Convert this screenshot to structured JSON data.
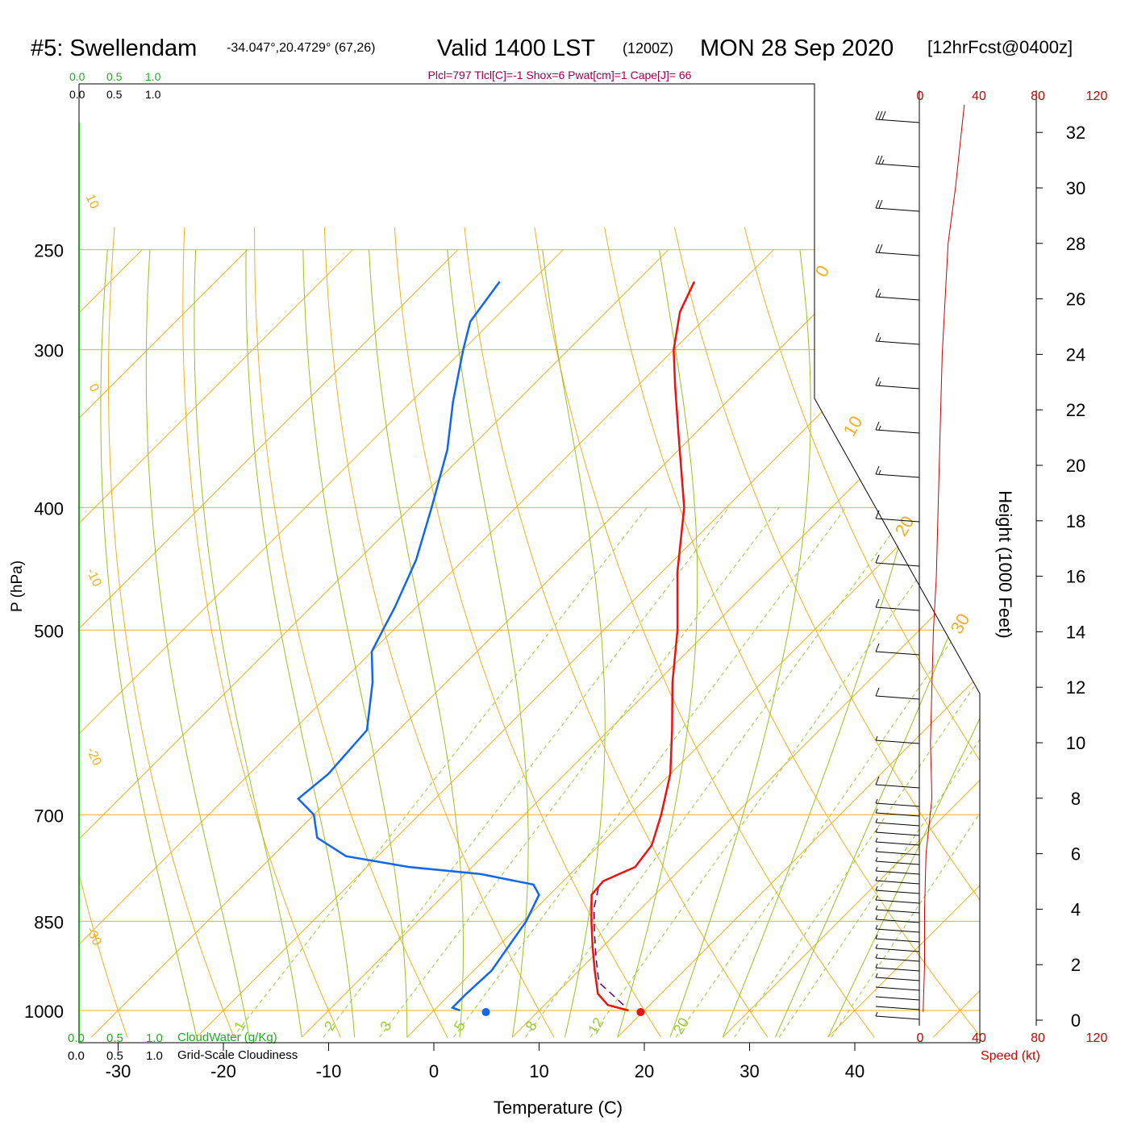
{
  "header": {
    "station": "#5: Swellendam",
    "coords": "-34.047°,20.4729° (67,26)",
    "valid_a": "Valid 1400 LST",
    "valid_z": "(1200Z)",
    "valid_b": "MON 28 Sep 2020",
    "forecast": "[12hrFcst@0400z]",
    "indices": "Plcl=797 Tlcl[C]=-1 Shox=6 Pwat[cm]=1 Cape[J]= 66"
  },
  "axes": {
    "xlabel": "Temperature (C)",
    "ylabel": "P (hPa)",
    "y2label": "Height (1000 Feet)",
    "speed_label": "Speed (kt)"
  },
  "legend": {
    "cloudwater_label": "CloudWater (g/Kg)",
    "cloudiness_label": "Grid-Scale Cloudiness",
    "scale_ticks": [
      "0.0",
      "0.5",
      "1.0"
    ]
  },
  "colors": {
    "temperature": "#ee1111",
    "dewpoint": "#1166ee",
    "parcel": "#660066",
    "isobar": "#f0b020",
    "isotherm": "#f0b020",
    "dry_adiabat": "#99c020",
    "moist_adiabat": "#99c020",
    "mixing_ratio": "#99cc33",
    "indices": "#990055",
    "cloud_axis": "#22aa22",
    "speed": "#cc0000"
  },
  "chart_data": {
    "type": "line",
    "x_ticks": [
      -30,
      -20,
      -10,
      0,
      10,
      20,
      30,
      40
    ],
    "p_ticks": [
      250,
      300,
      400,
      500,
      700,
      850,
      1000
    ],
    "xlim": [
      -30,
      40
    ],
    "ylim": [
      1050,
      250
    ],
    "y_scale": "log",
    "height_ticks": [
      0,
      2,
      4,
      6,
      8,
      10,
      12,
      14,
      16,
      18,
      20,
      22,
      24,
      26,
      28,
      30,
      32
    ],
    "speed_ticks": [
      "0",
      "40",
      "80",
      "120"
    ],
    "isotherm_labels": [
      {
        "label": "10",
        "t": 10
      },
      {
        "label": "0",
        "t": 0
      },
      {
        "label": "-10",
        "t": -10
      },
      {
        "label": "-20",
        "t": -20
      },
      {
        "label": "-30",
        "t": -30
      },
      {
        "label": "0",
        "t": 0
      },
      {
        "label": "10",
        "t": 10
      },
      {
        "label": "20",
        "t": 20
      },
      {
        "label": "30",
        "t": 30
      }
    ],
    "mixing_ratio_labels": [
      "1",
      "2",
      "3",
      "5",
      "8",
      "12",
      "20"
    ],
    "series": [
      {
        "name": "Temperature",
        "points": [
          {
            "p": 1000,
            "t": 18.5
          },
          {
            "p": 990,
            "t": 16.0
          },
          {
            "p": 970,
            "t": 14.0
          },
          {
            "p": 930,
            "t": 11.5
          },
          {
            "p": 890,
            "t": 9.0
          },
          {
            "p": 850,
            "t": 6.5
          },
          {
            "p": 810,
            "t": 4.0
          },
          {
            "p": 790,
            "t": 3.8
          },
          {
            "p": 770,
            "t": 5.5
          },
          {
            "p": 740,
            "t": 5.0
          },
          {
            "p": 700,
            "t": 3.0
          },
          {
            "p": 650,
            "t": 0.0
          },
          {
            "p": 600,
            "t": -4.0
          },
          {
            "p": 550,
            "t": -8.5
          },
          {
            "p": 500,
            "t": -13.0
          },
          {
            "p": 450,
            "t": -18.5
          },
          {
            "p": 400,
            "t": -24.0
          },
          {
            "p": 350,
            "t": -31.5
          },
          {
            "p": 320,
            "t": -36.5
          },
          {
            "p": 300,
            "t": -40.0
          },
          {
            "p": 280,
            "t": -43.0
          },
          {
            "p": 265,
            "t": -44.5
          }
        ]
      },
      {
        "name": "Dewpoint",
        "points": [
          {
            "p": 1000,
            "t": 2.5
          },
          {
            "p": 995,
            "t": 1.5
          },
          {
            "p": 970,
            "t": 1.5
          },
          {
            "p": 930,
            "t": 1.7
          },
          {
            "p": 850,
            "t": 0.3
          },
          {
            "p": 810,
            "t": -1.0
          },
          {
            "p": 795,
            "t": -2.5
          },
          {
            "p": 780,
            "t": -8.5
          },
          {
            "p": 770,
            "t": -16.0
          },
          {
            "p": 755,
            "t": -23.0
          },
          {
            "p": 730,
            "t": -27.5
          },
          {
            "p": 700,
            "t": -30.0
          },
          {
            "p": 680,
            "t": -33.0
          },
          {
            "p": 650,
            "t": -32.5
          },
          {
            "p": 600,
            "t": -33.0
          },
          {
            "p": 550,
            "t": -37.0
          },
          {
            "p": 520,
            "t": -40.0
          },
          {
            "p": 500,
            "t": -41.0
          },
          {
            "p": 480,
            "t": -42.0
          },
          {
            "p": 440,
            "t": -44.5
          },
          {
            "p": 400,
            "t": -48.0
          },
          {
            "p": 360,
            "t": -52.0
          },
          {
            "p": 330,
            "t": -56.0
          },
          {
            "p": 300,
            "t": -60.0
          },
          {
            "p": 285,
            "t": -62.0
          },
          {
            "p": 265,
            "t": -63.0
          }
        ]
      },
      {
        "name": "Parcel",
        "points": [
          {
            "p": 990,
            "t": 17.5
          },
          {
            "p": 950,
            "t": 13.0
          },
          {
            "p": 910,
            "t": 10.5
          },
          {
            "p": 870,
            "t": 8.0
          },
          {
            "p": 830,
            "t": 5.5
          },
          {
            "p": 800,
            "t": 4.0
          }
        ]
      }
    ],
    "surface_temperature": {
      "p": 1003,
      "t": 19.8
    },
    "surface_dewpoint": {
      "p": 1003,
      "t": 5.1
    },
    "wind_speed_profile": [
      {
        "h": 0.3,
        "speed": 2
      },
      {
        "h": 2,
        "speed": 3
      },
      {
        "h": 4,
        "speed": 3
      },
      {
        "h": 6,
        "speed": 4
      },
      {
        "h": 7,
        "speed": 6
      },
      {
        "h": 8,
        "speed": 8
      },
      {
        "h": 10,
        "speed": 7
      },
      {
        "h": 12,
        "speed": 8
      },
      {
        "h": 14,
        "speed": 9
      },
      {
        "h": 16,
        "speed": 11
      },
      {
        "h": 18,
        "speed": 12
      },
      {
        "h": 20,
        "speed": 13
      },
      {
        "h": 22,
        "speed": 14
      },
      {
        "h": 24,
        "speed": 15
      },
      {
        "h": 26,
        "speed": 17
      },
      {
        "h": 28,
        "speed": 19
      },
      {
        "h": 30,
        "speed": 24
      },
      {
        "h": 32,
        "speed": 28
      },
      {
        "h": 33,
        "speed": 30
      }
    ]
  }
}
